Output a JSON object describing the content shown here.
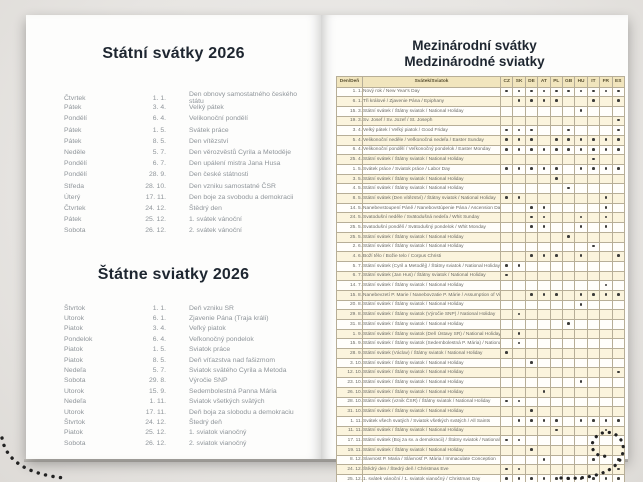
{
  "left_page": {
    "czech": {
      "title": "Státní svátky 2026",
      "rows": [
        {
          "day": "Čtvrtek",
          "date": "1. 1.",
          "name": "Den obnovy samostatného českého státu"
        },
        {
          "day": "Pátek",
          "date": "3. 4.",
          "name": "Velký pátek"
        },
        {
          "day": "Pondělí",
          "date": "6. 4.",
          "name": "Velikonoční pondělí"
        },
        {
          "day": "Pátek",
          "date": "1. 5.",
          "name": "Svátek práce"
        },
        {
          "day": "Pátek",
          "date": "8. 5.",
          "name": "Den vítězství"
        },
        {
          "day": "Neděle",
          "date": "5. 7.",
          "name": "Den věrozvěstů Cyrila a Metoděje"
        },
        {
          "day": "Pondělí",
          "date": "6. 7.",
          "name": "Den upálení mistra Jana Husa"
        },
        {
          "day": "Pondělí",
          "date": "28. 9.",
          "name": "Den české státnosti"
        },
        {
          "day": "Středa",
          "date": "28. 10.",
          "name": "Den vzniku samostatné ČSR"
        },
        {
          "day": "Úterý",
          "date": "17. 11.",
          "name": "Den boje za svobodu a demokracii"
        },
        {
          "day": "Čtvrtek",
          "date": "24. 12.",
          "name": "Štědrý den"
        },
        {
          "day": "Pátek",
          "date": "25. 12.",
          "name": "1. svátek vánoční"
        },
        {
          "day": "Sobota",
          "date": "26. 12.",
          "name": "2. svátek vánoční"
        }
      ]
    },
    "slovak": {
      "title": "Štátne sviatky 2026",
      "rows": [
        {
          "day": "Štvrtok",
          "date": "1. 1.",
          "name": "Deň vzniku SR"
        },
        {
          "day": "Utorok",
          "date": "6. 1.",
          "name": "Zjavenie Pána (Traja králi)"
        },
        {
          "day": "Piatok",
          "date": "3. 4.",
          "name": "Veľký piatok"
        },
        {
          "day": "Pondelok",
          "date": "6. 4.",
          "name": "Veľkonočný pondelok"
        },
        {
          "day": "Piatok",
          "date": "1. 5.",
          "name": "Sviatok práce"
        },
        {
          "day": "Piatok",
          "date": "8. 5.",
          "name": "Deň víťazstva nad fašizmom"
        },
        {
          "day": "Nedeľa",
          "date": "5. 7.",
          "name": "Sviatok svätého Cyrila a Metoda"
        },
        {
          "day": "Sobota",
          "date": "29. 8.",
          "name": "Výročie SNP"
        },
        {
          "day": "Utorok",
          "date": "15. 9.",
          "name": "Sedembolestná Panna Mária"
        },
        {
          "day": "Nedeľa",
          "date": "1. 11.",
          "name": "Sviatok všetkých svätých"
        },
        {
          "day": "Utorok",
          "date": "17. 11.",
          "name": "Deň boja za slobodu a demokraciu"
        },
        {
          "day": "Štvrtok",
          "date": "24. 12.",
          "name": "Štedrý deň"
        },
        {
          "day": "Piatok",
          "date": "25. 12.",
          "name": "1. sviatok vianočný"
        },
        {
          "day": "Sobota",
          "date": "26. 12.",
          "name": "2. sviatok vianočný"
        }
      ]
    }
  },
  "right_page": {
    "title_line1": "Mezinárodní svátky",
    "title_line2": "Medzinárodné sviatky",
    "table": {
      "header_day": "Den/Deň",
      "header_holiday": "Svátek/Sviatok",
      "countries": [
        "CZ",
        "SK",
        "DE",
        "AT",
        "PL",
        "GB",
        "HU",
        "IT",
        "FR",
        "ES"
      ],
      "rows": [
        {
          "date": "1. 1.",
          "name": "Nový rok / New Year's Day",
          "marks": [
            "CZ",
            "SK",
            "DE",
            "AT",
            "PL",
            "GB",
            "HU",
            "IT",
            "FR",
            "ES"
          ]
        },
        {
          "date": "6. 1.",
          "name": "Tři králové / Zjavenie Pána / Epiphany",
          "marks": [
            "SK",
            "DE",
            "AT",
            "PL",
            "IT",
            "ES"
          ]
        },
        {
          "date": "15. 3.",
          "name": "Státní svátek / Štátny sviatok / National Holiday",
          "marks": [
            "HU"
          ]
        },
        {
          "date": "19. 3.",
          "name": "Sv. Josef / Sv. Jozef / St. Joseph",
          "marks": [
            "ES"
          ]
        },
        {
          "date": "3. 4.",
          "name": "Velký pátek / Veľký piatok / Good Friday",
          "marks": [
            "CZ",
            "SK",
            "DE",
            "GB",
            "ES"
          ]
        },
        {
          "date": "5. 4.",
          "name": "Velikonoční neděle / Veľkonočná nedeľa / Easter Sunday",
          "marks": [
            "CZ",
            "SK",
            "DE",
            "PL",
            "GB",
            "HU",
            "IT",
            "FR",
            "ES"
          ]
        },
        {
          "date": "6. 4.",
          "name": "Velikonoční pondělí / Veľkonočný pondelok / Easter Monday",
          "marks": [
            "CZ",
            "SK",
            "DE",
            "AT",
            "PL",
            "GB",
            "HU",
            "IT",
            "FR",
            "ES"
          ]
        },
        {
          "date": "25. 4.",
          "name": "Státní svátek / Štátny sviatok / National Holiday",
          "marks": [
            "IT"
          ]
        },
        {
          "date": "1. 5.",
          "name": "Svátek práce / Sviatok práce / Labor Day",
          "marks": [
            "CZ",
            "SK",
            "DE",
            "AT",
            "PL",
            "HU",
            "IT",
            "FR",
            "ES"
          ]
        },
        {
          "date": "3. 5.",
          "name": "Státní svátek / Štátny sviatok / National Holiday",
          "marks": [
            "PL"
          ]
        },
        {
          "date": "4. 5.",
          "name": "Státní svátek / Štátny sviatok / National Holiday",
          "marks": [
            "GB"
          ]
        },
        {
          "date": "8. 5.",
          "name": "Státní svátek (Den vítězství) / Štátny sviatok / National Holiday",
          "marks": [
            "CZ",
            "SK",
            "FR"
          ]
        },
        {
          "date": "14. 5.",
          "name": "Nanebevstoupení Páně / Nanebovstúpenie Pána / Ascension Day",
          "marks": [
            "DE",
            "AT",
            "FR"
          ]
        },
        {
          "date": "24. 5.",
          "name": "Svatodušní neděle / Svätodušná nedeľa / Whit Sunday",
          "marks": [
            "DE",
            "AT",
            "HU",
            "FR"
          ]
        },
        {
          "date": "25. 5.",
          "name": "Svatodušní pondělí / Svätodušný pondelok / Whit Monday",
          "marks": [
            "DE",
            "AT",
            "HU",
            "FR"
          ]
        },
        {
          "date": "25. 5.",
          "name": "Státní svátek / Štátny sviatok / National Holiday",
          "marks": [
            "GB"
          ]
        },
        {
          "date": "2. 6.",
          "name": "Státní svátek / Štátny sviatok / National Holiday",
          "marks": [
            "IT"
          ]
        },
        {
          "date": "4. 6.",
          "name": "Boží tělo / Božie telo / Corpus Christi",
          "marks": [
            "DE",
            "AT",
            "PL",
            "HU",
            "ES"
          ]
        },
        {
          "date": "5. 7.",
          "name": "Státní svátek (Cyril a Metoděj) / Štátny sviatok / National Holiday",
          "marks": [
            "CZ",
            "SK"
          ]
        },
        {
          "date": "6. 7.",
          "name": "Státní svátek (Jan Hus) / Štátny sviatok / National Holiday",
          "marks": [
            "CZ"
          ]
        },
        {
          "date": "14. 7.",
          "name": "Státní svátek / Štátny sviatok / National Holiday",
          "marks": [
            "FR"
          ]
        },
        {
          "date": "15. 8.",
          "name": "Nanebevzetí P. Marie / Nanebovzatie P. Márie / Assumption of Virgin Mary",
          "marks": [
            "DE",
            "AT",
            "PL",
            "HU",
            "IT",
            "FR",
            "ES"
          ]
        },
        {
          "date": "20. 8.",
          "name": "Státní svátek / Štátny sviatok / National Holiday",
          "marks": [
            "HU"
          ]
        },
        {
          "date": "29. 8.",
          "name": "Státní svátek / Štátny sviatok (Výročie SNP) / National Holiday",
          "marks": [
            "SK"
          ]
        },
        {
          "date": "31. 8.",
          "name": "Státní svátek / Štátny sviatok / National Holiday",
          "marks": [
            "GB"
          ]
        },
        {
          "date": "1. 9.",
          "name": "Státní svátek / Štátny sviatok (Deň Ústavy SR) / National Holiday",
          "marks": [
            "SK"
          ]
        },
        {
          "date": "15. 9.",
          "name": "Státní svátek / Štátny sviatok (Sedembolestná P. Mária) / National Holiday",
          "marks": [
            "SK"
          ]
        },
        {
          "date": "28. 9.",
          "name": "Státní svátek (Václav) / Štátny sviatok / National Holiday",
          "marks": [
            "CZ"
          ]
        },
        {
          "date": "3. 10.",
          "name": "Státní svátek / Štátny sviatok / National Holiday",
          "marks": [
            "DE"
          ]
        },
        {
          "date": "12. 10.",
          "name": "Státní svátek / Štátny sviatok / National Holiday",
          "marks": [
            "ES"
          ]
        },
        {
          "date": "23. 10.",
          "name": "Státní svátek / Štátny sviatok / National Holiday",
          "marks": [
            "HU"
          ]
        },
        {
          "date": "26. 10.",
          "name": "Státní svátek / Štátny sviatok / National Holiday",
          "marks": [
            "AT"
          ]
        },
        {
          "date": "28. 10.",
          "name": "Státní svátek (vznik ČSR) / Štátny sviatok / National Holiday",
          "marks": [
            "CZ",
            "SK"
          ]
        },
        {
          "date": "31. 10.",
          "name": "Státní svátek / Štátny sviatok / National Holiday",
          "marks": [
            "DE"
          ]
        },
        {
          "date": "1. 11.",
          "name": "Svátek všech svatých / Sviatok všetkých svätých / All Saints",
          "marks": [
            "SK",
            "DE",
            "AT",
            "PL",
            "HU",
            "IT",
            "FR",
            "ES"
          ]
        },
        {
          "date": "11. 11.",
          "name": "Státní svátek / Štátny sviatok / National Holiday",
          "marks": [
            "PL",
            "FR"
          ]
        },
        {
          "date": "17. 11.",
          "name": "Státní svátek (Boj za sv. a demokracii) / Štátny sviatok / National Holiday",
          "marks": [
            "CZ",
            "SK"
          ]
        },
        {
          "date": "19. 11.",
          "name": "Státní svátek / Štátny sviatok / National Holiday",
          "marks": [
            "DE"
          ]
        },
        {
          "date": "8. 12.",
          "name": "Slavnost P. Maria / Slávnosť P. Mária / Immaculate Conception",
          "marks": [
            "AT",
            "IT",
            "ES"
          ]
        },
        {
          "date": "24. 12.",
          "name": "Štědrý den / Štedrý deň / Christmas Eve",
          "marks": [
            "CZ",
            "SK",
            "ES"
          ]
        },
        {
          "date": "25. 12.",
          "name": "1. svátek vánoční / 1. sviatok vianočný / Christmas Day",
          "marks": [
            "CZ",
            "SK",
            "DE",
            "AT",
            "PL",
            "GB",
            "HU",
            "IT",
            "FR",
            "ES"
          ]
        },
        {
          "date": "26. 12.",
          "name": "2. svátek vánoční / 2. sviatok vianočný / Boxing day",
          "marks": [
            "CZ",
            "SK",
            "DE",
            "AT",
            "PL",
            "GB",
            "HU",
            "IT"
          ]
        }
      ]
    }
  },
  "colors": {
    "accent_cream": "#fbf4dd",
    "header_tan": "#f1e5bd",
    "title_ink": "#1e2630",
    "list_gray": "#8f959a",
    "border_tan": "#b7ae97"
  }
}
